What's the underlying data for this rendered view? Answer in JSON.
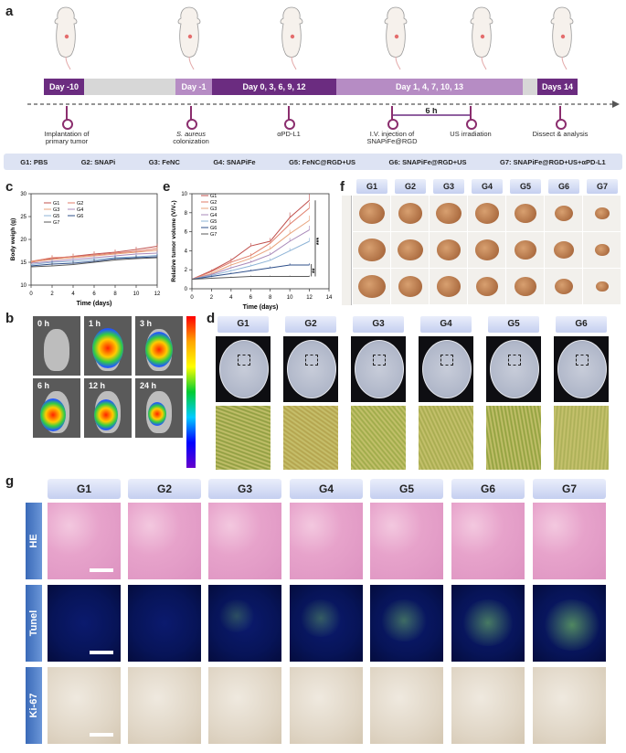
{
  "panels": {
    "a": "a",
    "b": "b",
    "c": "c",
    "d": "d",
    "e": "e",
    "f": "f",
    "g": "g"
  },
  "timeline": {
    "segments": [
      {
        "label": "Day -10",
        "color": "#6b2c80"
      },
      {
        "label": "",
        "color": "#d7d7d7"
      },
      {
        "label": "Day -1",
        "color": "#b68cc4"
      },
      {
        "label": "Day 0, 3, 6, 9, 12",
        "color": "#6b2c80"
      },
      {
        "label": "Day 1, 4, 7, 10, 13",
        "color": "#b68cc4"
      },
      {
        "label": "",
        "color": "#d7d7d7"
      },
      {
        "label": "Days 14",
        "color": "#6b2c80"
      }
    ],
    "events": [
      {
        "l1": "Implantation of",
        "l2": "primary tumor"
      },
      {
        "l1": "S. aureus",
        "l2": "colonization"
      },
      {
        "l1": "αPD-L1",
        "l2": ""
      },
      {
        "l1": "I.V. injection of",
        "l2": "SNAPiFe@RGD"
      },
      {
        "l1": "US irradiation",
        "l2": ""
      },
      {
        "l1": "Dissect & analysis",
        "l2": ""
      }
    ],
    "interval": "6 h"
  },
  "groups": [
    "G1: PBS",
    "G2: SNAPi",
    "G3: FeNC",
    "G4: SNAPiFe",
    "G5: FeNC@RGD+US",
    "G6: SNAPiFe@RGD+US",
    "G7: SNAPiFe@RGD+US+αPD-L1"
  ],
  "group_short": [
    "G1",
    "G2",
    "G3",
    "G4",
    "G5",
    "G6",
    "G7"
  ],
  "colors": {
    "g1": "#c0504d",
    "g2": "#e07d6a",
    "g3": "#e8a37c",
    "g4": "#a888b8",
    "g5": "#8db3d6",
    "g6": "#2e4f8a",
    "g7": "#5a5a5a"
  },
  "chart_data": [
    {
      "type": "line",
      "title": "",
      "xlabel": "Time (days)",
      "ylabel": "Body weigh (g)",
      "xlim": [
        0,
        12
      ],
      "ylim": [
        10,
        30
      ],
      "xticks": [
        "0",
        "2",
        "4",
        "6",
        "8",
        "10",
        "12"
      ],
      "yticks": [
        "10",
        "15",
        "20",
        "25",
        "30"
      ],
      "x": [
        0,
        2,
        4,
        6,
        8,
        10,
        12
      ],
      "series": [
        {
          "name": "G1",
          "values": [
            15.0,
            15.8,
            16.3,
            16.8,
            17.2,
            17.8,
            18.5
          ]
        },
        {
          "name": "G2",
          "values": [
            15.2,
            16.0,
            16.2,
            16.6,
            17.0,
            17.4,
            18.0
          ]
        },
        {
          "name": "G3",
          "values": [
            15.1,
            15.6,
            16.0,
            16.4,
            16.8,
            17.2,
            17.6
          ]
        },
        {
          "name": "G4",
          "values": [
            14.8,
            15.2,
            15.6,
            16.0,
            16.4,
            16.8,
            17.0
          ]
        },
        {
          "name": "G5",
          "values": [
            14.5,
            15.0,
            15.2,
            15.6,
            16.0,
            16.2,
            16.5
          ]
        },
        {
          "name": "G6",
          "values": [
            14.2,
            14.6,
            14.8,
            15.2,
            15.8,
            16.0,
            16.2
          ]
        },
        {
          "name": "G7",
          "values": [
            14.0,
            14.2,
            14.5,
            15.0,
            15.5,
            15.8,
            16.0
          ]
        }
      ]
    },
    {
      "type": "line",
      "title": "",
      "xlabel": "Time (days)",
      "ylabel": "Relative tumor volume (V/V₀)",
      "xlim": [
        0,
        14
      ],
      "ylim": [
        0,
        10
      ],
      "xticks": [
        "0",
        "2",
        "4",
        "6",
        "8",
        "10",
        "12",
        "14"
      ],
      "yticks": [
        "0",
        "2",
        "4",
        "6",
        "8",
        "10"
      ],
      "x": [
        0,
        2,
        4,
        6,
        8,
        10,
        12
      ],
      "series": [
        {
          "name": "G1",
          "values": [
            1.0,
            1.9,
            3.0,
            4.5,
            5.0,
            7.5,
            9.3
          ]
        },
        {
          "name": "G2",
          "values": [
            1.0,
            1.8,
            2.8,
            3.5,
            4.8,
            6.8,
            8.5
          ]
        },
        {
          "name": "G3",
          "values": [
            1.0,
            1.6,
            2.5,
            3.2,
            4.2,
            5.8,
            7.2
          ]
        },
        {
          "name": "G4",
          "values": [
            1.0,
            1.5,
            2.2,
            2.8,
            3.6,
            5.0,
            6.2
          ]
        },
        {
          "name": "G5",
          "values": [
            1.0,
            1.4,
            1.9,
            2.4,
            3.0,
            4.0,
            5.0
          ]
        },
        {
          "name": "G6",
          "values": [
            1.0,
            1.3,
            1.6,
            1.9,
            2.2,
            2.5,
            2.5
          ]
        },
        {
          "name": "G7",
          "values": [
            1.0,
            1.1,
            1.2,
            1.3,
            1.3,
            1.3,
            1.3
          ]
        }
      ],
      "significance": [
        "***",
        "**"
      ]
    }
  ],
  "imaging": {
    "times": [
      "0 h",
      "1 h",
      "3 h",
      "6 h",
      "12 h",
      "24 h"
    ]
  },
  "histology": {
    "rows": [
      "HE",
      "Tunel",
      "Ki-67"
    ]
  }
}
